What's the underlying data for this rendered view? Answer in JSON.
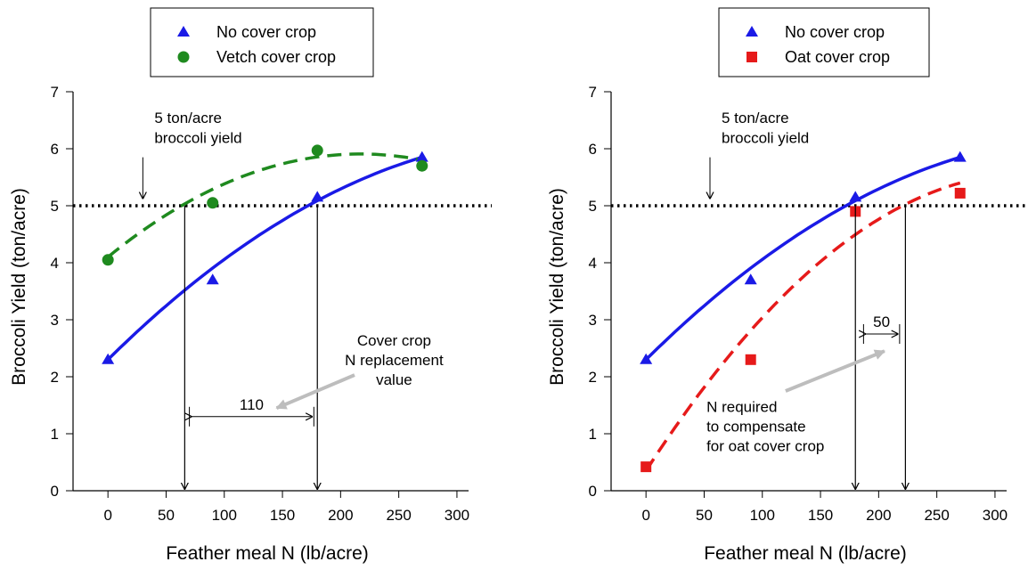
{
  "colors": {
    "no_cover": "#1a1ae6",
    "vetch": "#1f8a1f",
    "oat": "#e61a1a",
    "threshold": "#000000",
    "arrow_gray": "#bdbdbd"
  },
  "chart_data": [
    {
      "type": "scatter",
      "title": "",
      "xlabel": "Feather meal N (lb/acre)",
      "ylabel": "Broccoli Yield (ton/acre)",
      "xlim": [
        -30,
        310
      ],
      "ylim": [
        0,
        7
      ],
      "x_ticks": [
        "0",
        "50",
        "100",
        "150",
        "200",
        "250",
        "300"
      ],
      "y_ticks": [
        "0",
        "1",
        "2",
        "3",
        "4",
        "5",
        "6",
        "7"
      ],
      "threshold_y": 5,
      "legend": [
        "No cover crop",
        "Vetch cover crop"
      ],
      "series": [
        {
          "name": "No cover crop",
          "marker": "triangle",
          "line_style": "solid",
          "color": "#1a1ae6",
          "points": [
            [
              0,
              2.3
            ],
            [
              90,
              3.7
            ],
            [
              180,
              5.15
            ],
            [
              270,
              5.85
            ]
          ],
          "fit": [
            [
              0,
              2.3
            ],
            [
              270,
              5.85
            ]
          ]
        },
        {
          "name": "Vetch cover crop",
          "marker": "circle",
          "line_style": "dashed",
          "color": "#1f8a1f",
          "points": [
            [
              0,
              4.05
            ],
            [
              90,
              5.05
            ],
            [
              180,
              5.97
            ],
            [
              270,
              5.7
            ]
          ],
          "fit": [
            [
              0,
              4.1
            ],
            [
              270,
              5.8
            ]
          ]
        }
      ],
      "annotations": {
        "yield_label_lines": [
          "5 ton/acre",
          "broccoli yield"
        ],
        "yield_arrow_x": 30,
        "drop_lines_x": [
          66,
          180
        ],
        "span_label": "110",
        "span_x": [
          70,
          177
        ],
        "span_y": 1.3,
        "note_lines": [
          "Cover crop",
          "N replacement",
          "value"
        ]
      }
    },
    {
      "type": "scatter",
      "title": "",
      "xlabel": "Feather meal N (lb/acre)",
      "ylabel": "Broccoli Yield (ton/acre)",
      "xlim": [
        -30,
        310
      ],
      "ylim": [
        0,
        7
      ],
      "x_ticks": [
        "0",
        "50",
        "100",
        "150",
        "200",
        "250",
        "300"
      ],
      "y_ticks": [
        "0",
        "1",
        "2",
        "3",
        "4",
        "5",
        "6",
        "7"
      ],
      "threshold_y": 5,
      "legend": [
        "No cover crop",
        "Oat cover crop"
      ],
      "series": [
        {
          "name": "No cover crop",
          "marker": "triangle",
          "line_style": "solid",
          "color": "#1a1ae6",
          "points": [
            [
              0,
              2.3
            ],
            [
              90,
              3.7
            ],
            [
              180,
              5.15
            ],
            [
              270,
              5.85
            ]
          ],
          "fit": [
            [
              0,
              2.3
            ],
            [
              270,
              5.85
            ]
          ]
        },
        {
          "name": "Oat cover crop",
          "marker": "square",
          "line_style": "dashed",
          "color": "#e61a1a",
          "points": [
            [
              0,
              0.42
            ],
            [
              90,
              2.3
            ],
            [
              180,
              4.9
            ],
            [
              270,
              5.22
            ]
          ],
          "fit": [
            [
              0,
              0.35
            ],
            [
              270,
              5.4
            ]
          ]
        }
      ],
      "annotations": {
        "yield_label_lines": [
          "5 ton/acre",
          "broccoli yield"
        ],
        "yield_arrow_x": 55,
        "drop_lines_x": [
          180,
          223
        ],
        "span_label": "50",
        "span_x": [
          187,
          218
        ],
        "span_y": 2.75,
        "note_lines": [
          "N required",
          "to compensate",
          "for oat cover crop"
        ]
      }
    }
  ]
}
